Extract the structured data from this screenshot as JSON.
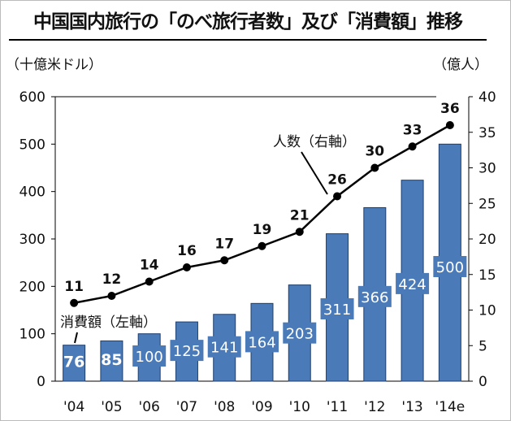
{
  "chart_data": {
    "type": "bar+line",
    "title": "中国国内旅行の「のべ旅行者数」及び「消費額」推移",
    "left_unit": "（十億米ドル）",
    "right_unit": "（億人）",
    "categories": [
      "'04",
      "'05",
      "'06",
      "'07",
      "'08",
      "'09",
      "'10",
      "'11",
      "'12",
      "'13",
      "'14e"
    ],
    "series": [
      {
        "name": "消費額（左軸）",
        "type": "bar",
        "axis": "left",
        "color": "#4a7ab8",
        "values": [
          76,
          85,
          100,
          125,
          141,
          164,
          203,
          311,
          366,
          424,
          500
        ]
      },
      {
        "name": "人数（右軸）",
        "type": "line",
        "axis": "right",
        "color": "#000000",
        "values": [
          11,
          12,
          14,
          16,
          17,
          19,
          21,
          26,
          30,
          33,
          36
        ]
      }
    ],
    "left_axis": {
      "ylim": [
        0,
        600
      ],
      "ticks": [
        0,
        100,
        200,
        300,
        400,
        500,
        600
      ]
    },
    "right_axis": {
      "ylim": [
        0,
        40
      ],
      "ticks": [
        0,
        5,
        10,
        15,
        20,
        25,
        30,
        35,
        40
      ]
    },
    "grid": false
  }
}
